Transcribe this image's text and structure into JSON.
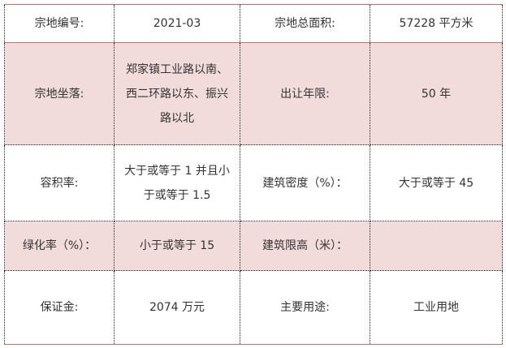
{
  "colors": {
    "pink_row": "#f2dcdb",
    "border_red": "#c0706c"
  },
  "rows": [
    {
      "label1": "宗地编号:",
      "value1": "2021-03",
      "label2": "宗地总面积:",
      "value2": "57228 平方米"
    },
    {
      "label1": "宗地坐落:",
      "value1": "郑家镇工业路以南、西二环路以东、振兴路以北",
      "label2": "出让年限:",
      "value2": "50 年"
    },
    {
      "label1": "容积率:",
      "value1": "大于或等于 1 并且小于或等于 1.5",
      "label2": "建筑密度（%）：",
      "value2": "大于或等于 45"
    },
    {
      "label1": "绿化率（%）：",
      "value1": "小于或等于 15",
      "label2": "建筑限高（米）：",
      "value2": ""
    },
    {
      "label1": "保证金:",
      "value1": "2074 万元",
      "label2": "主要用途:",
      "value2": "工业用地"
    }
  ]
}
